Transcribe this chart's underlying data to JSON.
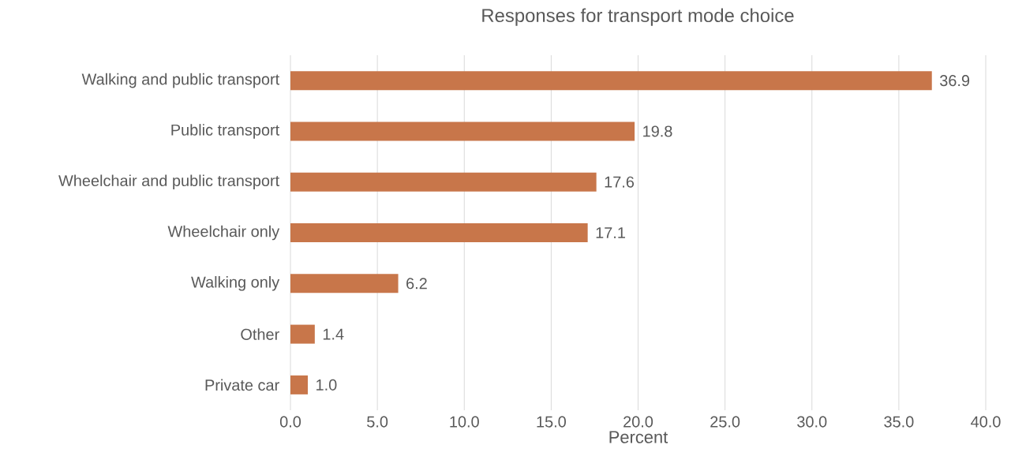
{
  "chart_data": {
    "type": "bar",
    "orientation": "horizontal",
    "title": "Responses for transport mode choice",
    "xlabel": "Percent",
    "categories": [
      "Walking and public transport",
      "Public transport",
      "Wheelchair and public transport",
      "Wheelchair only",
      "Walking only",
      "Other",
      "Private car"
    ],
    "values": [
      36.9,
      19.8,
      17.6,
      17.1,
      6.2,
      1.4,
      1.0
    ],
    "value_labels": [
      "36.9",
      "19.8",
      "17.6",
      "17.1",
      "6.2",
      "1.4",
      "1.0"
    ],
    "color": "#c8764a",
    "xlim": [
      0,
      40
    ],
    "xticks": [
      {
        "value": 0,
        "label": "0.0"
      },
      {
        "value": 5,
        "label": "5.0"
      },
      {
        "value": 10,
        "label": "10.0"
      },
      {
        "value": 15,
        "label": "15.0"
      },
      {
        "value": 20,
        "label": "20.0"
      },
      {
        "value": 25,
        "label": "25.0"
      },
      {
        "value": 30,
        "label": "30.0"
      },
      {
        "value": 35,
        "label": "35.0"
      },
      {
        "value": 40,
        "label": "40.0"
      }
    ],
    "grid": "x"
  }
}
